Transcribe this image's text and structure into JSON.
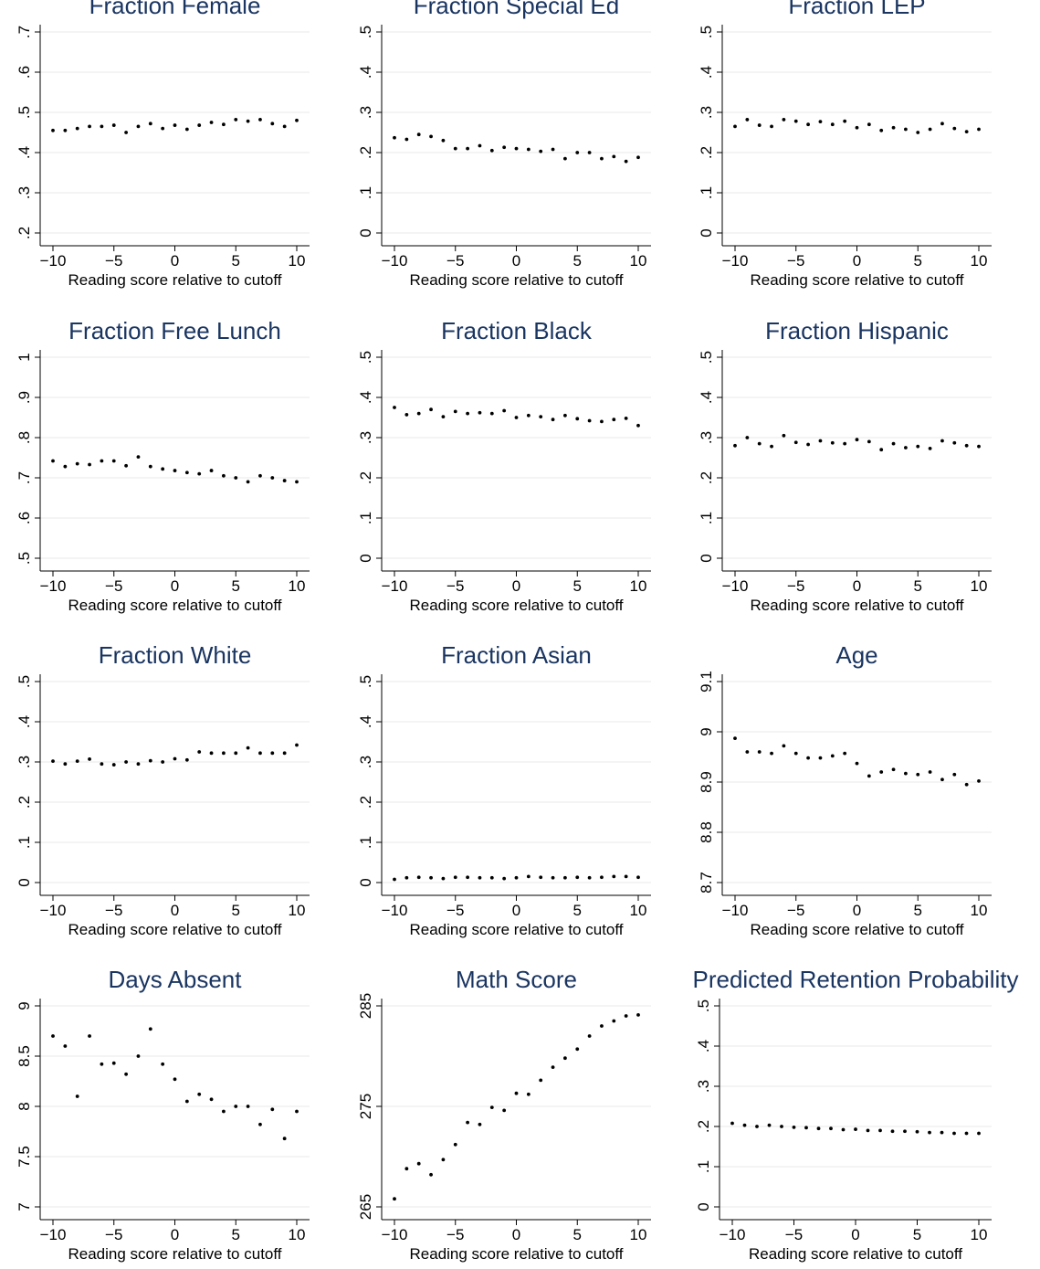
{
  "figure": {
    "x_tick_labels": [
      "−10",
      "−5",
      "0",
      "5",
      "10"
    ]
  },
  "chart_data": [
    {
      "type": "scatter",
      "title": "Fraction Female",
      "xlabel": "Reading score relative to cutoff",
      "ylabel": "",
      "xlim": [
        -10,
        10
      ],
      "ylim": [
        0.2,
        0.7
      ],
      "yticks": [
        0.2,
        0.3,
        0.4,
        0.5,
        0.6,
        0.7
      ],
      "ytick_labels": [
        ".2",
        ".3",
        ".4",
        ".5",
        ".6",
        ".7"
      ],
      "grid": true,
      "x": [
        -10,
        -9,
        -8,
        -7,
        -6,
        -5,
        -4,
        -3,
        -2,
        -1,
        0,
        1,
        2,
        3,
        4,
        5,
        6,
        7,
        8,
        9,
        10
      ],
      "y": [
        0.455,
        0.455,
        0.46,
        0.465,
        0.465,
        0.468,
        0.45,
        0.465,
        0.472,
        0.46,
        0.468,
        0.458,
        0.468,
        0.475,
        0.47,
        0.482,
        0.478,
        0.482,
        0.472,
        0.465,
        0.48
      ]
    },
    {
      "type": "scatter",
      "title": "Fraction Special Ed",
      "xlabel": "Reading score relative to cutoff",
      "ylabel": "",
      "xlim": [
        -10,
        10
      ],
      "ylim": [
        0,
        0.5
      ],
      "yticks": [
        0,
        0.1,
        0.2,
        0.3,
        0.4,
        0.5
      ],
      "ytick_labels": [
        "0",
        ".1",
        ".2",
        ".3",
        ".4",
        ".5"
      ],
      "grid": true,
      "x": [
        -10,
        -9,
        -8,
        -7,
        -6,
        -5,
        -4,
        -3,
        -2,
        -1,
        0,
        1,
        2,
        3,
        4,
        5,
        6,
        7,
        8,
        9,
        10
      ],
      "y": [
        0.237,
        0.233,
        0.245,
        0.24,
        0.23,
        0.21,
        0.21,
        0.217,
        0.205,
        0.213,
        0.21,
        0.208,
        0.203,
        0.208,
        0.185,
        0.2,
        0.2,
        0.185,
        0.19,
        0.178,
        0.188
      ]
    },
    {
      "type": "scatter",
      "title": "Fraction LEP",
      "xlabel": "Reading score relative to cutoff",
      "ylabel": "",
      "xlim": [
        -10,
        10
      ],
      "ylim": [
        0,
        0.5
      ],
      "yticks": [
        0,
        0.1,
        0.2,
        0.3,
        0.4,
        0.5
      ],
      "ytick_labels": [
        "0",
        ".1",
        ".2",
        ".3",
        ".4",
        ".5"
      ],
      "grid": true,
      "x": [
        -10,
        -9,
        -8,
        -7,
        -6,
        -5,
        -4,
        -3,
        -2,
        -1,
        0,
        1,
        2,
        3,
        4,
        5,
        6,
        7,
        8,
        9,
        10
      ],
      "y": [
        0.265,
        0.282,
        0.268,
        0.265,
        0.282,
        0.278,
        0.27,
        0.277,
        0.27,
        0.278,
        0.262,
        0.27,
        0.255,
        0.262,
        0.258,
        0.25,
        0.258,
        0.272,
        0.26,
        0.252,
        0.258
      ]
    },
    {
      "type": "scatter",
      "title": "Fraction Free Lunch",
      "xlabel": "Reading score relative to cutoff",
      "ylabel": "",
      "xlim": [
        -10,
        10
      ],
      "ylim": [
        0.5,
        1.0
      ],
      "yticks": [
        0.5,
        0.6,
        0.7,
        0.8,
        0.9,
        1.0
      ],
      "ytick_labels": [
        ".5",
        ".6",
        ".7",
        ".8",
        ".9",
        "1"
      ],
      "grid": true,
      "x": [
        -10,
        -9,
        -8,
        -7,
        -6,
        -5,
        -4,
        -3,
        -2,
        -1,
        0,
        1,
        2,
        3,
        4,
        5,
        6,
        7,
        8,
        9,
        10
      ],
      "y": [
        0.742,
        0.728,
        0.735,
        0.733,
        0.742,
        0.742,
        0.73,
        0.752,
        0.728,
        0.722,
        0.718,
        0.713,
        0.71,
        0.718,
        0.705,
        0.7,
        0.69,
        0.705,
        0.7,
        0.693,
        0.69
      ]
    },
    {
      "type": "scatter",
      "title": "Fraction Black",
      "xlabel": "Reading score relative to cutoff",
      "ylabel": "",
      "xlim": [
        -10,
        10
      ],
      "ylim": [
        0,
        0.5
      ],
      "yticks": [
        0,
        0.1,
        0.2,
        0.3,
        0.4,
        0.5
      ],
      "ytick_labels": [
        "0",
        ".1",
        ".2",
        ".3",
        ".4",
        ".5"
      ],
      "grid": true,
      "x": [
        -10,
        -9,
        -8,
        -7,
        -6,
        -5,
        -4,
        -3,
        -2,
        -1,
        0,
        1,
        2,
        3,
        4,
        5,
        6,
        7,
        8,
        9,
        10
      ],
      "y": [
        0.375,
        0.357,
        0.36,
        0.37,
        0.352,
        0.365,
        0.36,
        0.362,
        0.36,
        0.367,
        0.35,
        0.355,
        0.352,
        0.345,
        0.355,
        0.347,
        0.342,
        0.34,
        0.345,
        0.348,
        0.33
      ]
    },
    {
      "type": "scatter",
      "title": "Fraction Hispanic",
      "xlabel": "Reading score relative to cutoff",
      "ylabel": "",
      "xlim": [
        -10,
        10
      ],
      "ylim": [
        0,
        0.5
      ],
      "yticks": [
        0,
        0.1,
        0.2,
        0.3,
        0.4,
        0.5
      ],
      "ytick_labels": [
        "0",
        ".1",
        ".2",
        ".3",
        ".4",
        ".5"
      ],
      "grid": true,
      "x": [
        -10,
        -9,
        -8,
        -7,
        -6,
        -5,
        -4,
        -3,
        -2,
        -1,
        0,
        1,
        2,
        3,
        4,
        5,
        6,
        7,
        8,
        9,
        10
      ],
      "y": [
        0.28,
        0.3,
        0.285,
        0.278,
        0.305,
        0.288,
        0.283,
        0.292,
        0.287,
        0.285,
        0.295,
        0.29,
        0.27,
        0.285,
        0.275,
        0.278,
        0.273,
        0.292,
        0.287,
        0.28,
        0.278
      ]
    },
    {
      "type": "scatter",
      "title": "Fraction White",
      "xlabel": "Reading score relative to cutoff",
      "ylabel": "",
      "xlim": [
        -10,
        10
      ],
      "ylim": [
        0,
        0.5
      ],
      "yticks": [
        0,
        0.1,
        0.2,
        0.3,
        0.4,
        0.5
      ],
      "ytick_labels": [
        "0",
        ".1",
        ".2",
        ".3",
        ".4",
        ".5"
      ],
      "grid": true,
      "x": [
        -10,
        -9,
        -8,
        -7,
        -6,
        -5,
        -4,
        -3,
        -2,
        -1,
        0,
        1,
        2,
        3,
        4,
        5,
        6,
        7,
        8,
        9,
        10
      ],
      "y": [
        0.302,
        0.295,
        0.302,
        0.307,
        0.295,
        0.293,
        0.3,
        0.295,
        0.303,
        0.3,
        0.308,
        0.305,
        0.325,
        0.322,
        0.322,
        0.322,
        0.335,
        0.322,
        0.322,
        0.322,
        0.342
      ]
    },
    {
      "type": "scatter",
      "title": "Fraction Asian",
      "xlabel": "Reading score relative to cutoff",
      "ylabel": "",
      "xlim": [
        -10,
        10
      ],
      "ylim": [
        0,
        0.5
      ],
      "yticks": [
        0,
        0.1,
        0.2,
        0.3,
        0.4,
        0.5
      ],
      "ytick_labels": [
        "0",
        ".1",
        ".2",
        ".3",
        ".4",
        ".5"
      ],
      "grid": true,
      "x": [
        -10,
        -9,
        -8,
        -7,
        -6,
        -5,
        -4,
        -3,
        -2,
        -1,
        0,
        1,
        2,
        3,
        4,
        5,
        6,
        7,
        8,
        9,
        10
      ],
      "y": [
        0.008,
        0.012,
        0.013,
        0.012,
        0.01,
        0.013,
        0.013,
        0.012,
        0.012,
        0.01,
        0.012,
        0.015,
        0.013,
        0.012,
        0.012,
        0.013,
        0.012,
        0.013,
        0.015,
        0.015,
        0.013
      ]
    },
    {
      "type": "scatter",
      "title": "Age",
      "xlabel": "Reading score relative to cutoff",
      "ylabel": "",
      "xlim": [
        -10,
        10
      ],
      "ylim": [
        8.7,
        9.1
      ],
      "yticks": [
        8.7,
        8.8,
        8.9,
        9.0,
        9.1
      ],
      "ytick_labels": [
        "8.7",
        "8.8",
        "8.9",
        "9",
        "9.1"
      ],
      "grid": true,
      "x": [
        -10,
        -9,
        -8,
        -7,
        -6,
        -5,
        -4,
        -3,
        -2,
        -1,
        0,
        1,
        2,
        3,
        4,
        5,
        6,
        7,
        8,
        9,
        10
      ],
      "y": [
        8.987,
        8.96,
        8.96,
        8.957,
        8.972,
        8.957,
        8.948,
        8.948,
        8.952,
        8.957,
        8.937,
        8.912,
        8.92,
        8.925,
        8.917,
        8.915,
        8.92,
        8.905,
        8.915,
        8.895,
        8.902
      ]
    },
    {
      "type": "scatter",
      "title": "Days Absent",
      "xlabel": "Reading score relative to cutoff",
      "ylabel": "",
      "xlim": [
        -10,
        10
      ],
      "ylim": [
        7,
        9
      ],
      "yticks": [
        7,
        7.5,
        8,
        8.5,
        9
      ],
      "ytick_labels": [
        "7",
        "7.5",
        "8",
        "8.5",
        "9"
      ],
      "grid": true,
      "x": [
        -10,
        -9,
        -8,
        -7,
        -6,
        -5,
        -4,
        -3,
        -2,
        -1,
        0,
        1,
        2,
        3,
        4,
        5,
        6,
        7,
        8,
        9,
        10
      ],
      "y": [
        8.7,
        8.6,
        8.1,
        8.7,
        8.42,
        8.43,
        8.32,
        8.5,
        8.77,
        8.42,
        8.27,
        8.05,
        8.12,
        8.07,
        7.95,
        8.0,
        8.0,
        7.82,
        7.97,
        7.68,
        7.95
      ]
    },
    {
      "type": "scatter",
      "title": "Math Score",
      "xlabel": "Reading score relative to cutoff",
      "ylabel": "",
      "xlim": [
        -10,
        10
      ],
      "ylim": [
        265,
        285
      ],
      "yticks": [
        265,
        275,
        285
      ],
      "ytick_labels": [
        "265",
        "275",
        "285"
      ],
      "grid": true,
      "x": [
        -10,
        -9,
        -8,
        -7,
        -6,
        -5,
        -4,
        -3,
        -2,
        -1,
        0,
        1,
        2,
        3,
        4,
        5,
        6,
        7,
        8,
        9,
        10
      ],
      "y": [
        265.8,
        268.8,
        269.3,
        268.2,
        269.7,
        271.2,
        273.4,
        273.2,
        274.9,
        274.6,
        276.3,
        276.2,
        277.6,
        278.9,
        279.8,
        280.7,
        282.0,
        283.0,
        283.5,
        284.0,
        284.1
      ]
    },
    {
      "type": "scatter",
      "title": "Predicted Retention Probability",
      "xlabel": "Reading score relative to cutoff",
      "ylabel": "",
      "xlim": [
        -10,
        10
      ],
      "ylim": [
        0,
        0.5
      ],
      "yticks": [
        0,
        0.1,
        0.2,
        0.3,
        0.4,
        0.5
      ],
      "ytick_labels": [
        "0",
        ".1",
        ".2",
        ".3",
        ".4",
        ".5"
      ],
      "grid": true,
      "x": [
        -10,
        -9,
        -8,
        -7,
        -6,
        -5,
        -4,
        -3,
        -2,
        -1,
        0,
        1,
        2,
        3,
        4,
        5,
        6,
        7,
        8,
        9,
        10
      ],
      "y": [
        0.208,
        0.203,
        0.2,
        0.203,
        0.2,
        0.198,
        0.197,
        0.195,
        0.195,
        0.192,
        0.193,
        0.19,
        0.19,
        0.188,
        0.188,
        0.187,
        0.185,
        0.185,
        0.183,
        0.183,
        0.183
      ]
    }
  ]
}
